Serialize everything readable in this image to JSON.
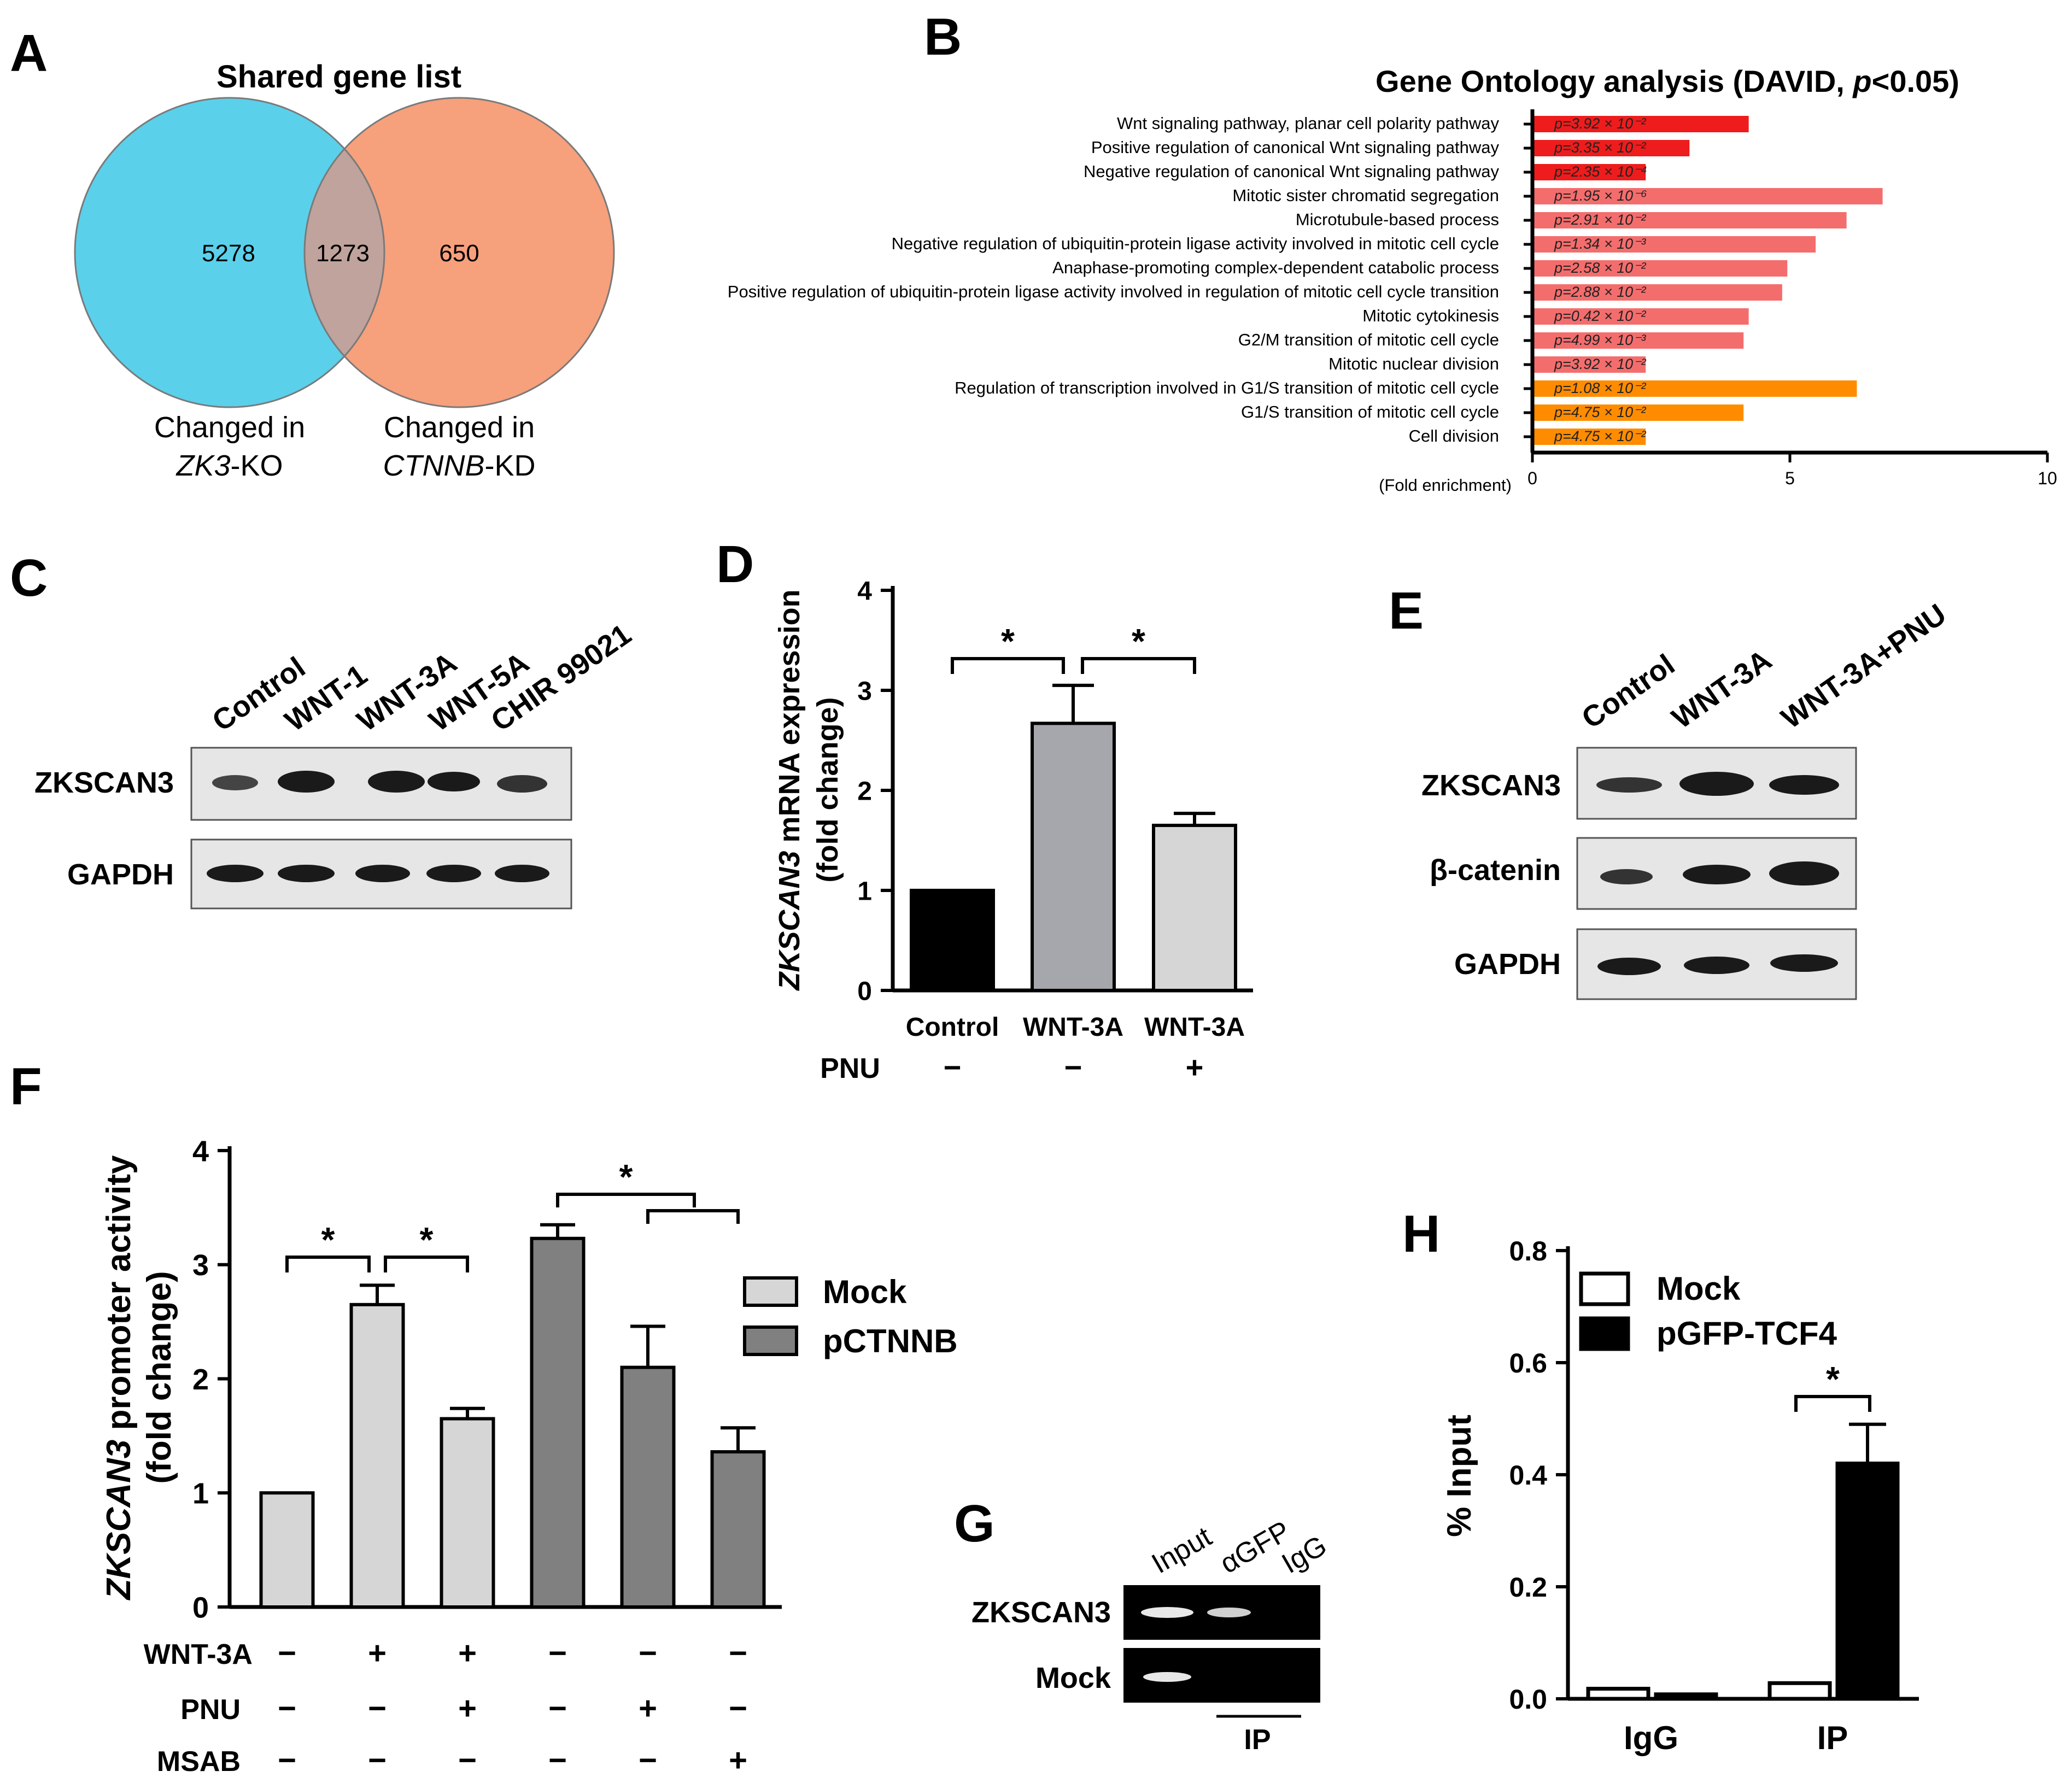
{
  "panels": {
    "A": {
      "letter": "A",
      "title": "Shared gene list",
      "left_count": "5278",
      "overlap_count": "1273",
      "right_count": "650",
      "left_label_line1": "Changed in",
      "left_label_gene": "ZK3",
      "left_label_suffix": "-KO",
      "right_label_line1": "Changed in",
      "right_label_gene": "CTNNB",
      "right_label_suffix": "-KD",
      "colors": {
        "left": "#5bd0ea",
        "right": "#f7a07c",
        "overlap": "#bfa39c"
      }
    },
    "B": {
      "letter": "B",
      "title_main": "Gene Ontology analysis (DAVID, ",
      "title_p": "p",
      "title_tail": "<0.05)",
      "axis_label": "(Fold enrichment)"
    },
    "C": {
      "letter": "C",
      "lanes": [
        "Control",
        "WNT-1",
        "WNT-3A",
        "WNT-5A",
        "CHIR 99021"
      ],
      "rows": [
        "ZKSCAN3",
        "GAPDH"
      ]
    },
    "D": {
      "letter": "D",
      "row_label": "PNU",
      "signs": [
        "−",
        "−",
        "+"
      ]
    },
    "E": {
      "letter": "E",
      "lanes": [
        "Control",
        "WNT-3A",
        "WNT-3A+PNU"
      ],
      "rows": [
        "ZKSCAN3",
        "β-catenin",
        "GAPDH"
      ]
    },
    "F": {
      "letter": "F",
      "legend": [
        "Mock",
        "pCTNNB"
      ],
      "row_labels": [
        "WNT-3A",
        "PNU",
        "MSAB"
      ],
      "signs": [
        [
          "−",
          "+",
          "+",
          "−",
          "−",
          "−"
        ],
        [
          "−",
          "−",
          "+",
          "−",
          "+",
          "−"
        ],
        [
          "−",
          "−",
          "−",
          "−",
          "−",
          "+"
        ]
      ]
    },
    "G": {
      "letter": "G",
      "lanes": [
        "Input",
        "αGFP",
        "IgG"
      ],
      "rows": [
        "ZKSCAN3",
        "Mock"
      ],
      "ip_label": "IP"
    },
    "H": {
      "letter": "H",
      "legend": [
        "Mock",
        "pGFP-TCF4"
      ]
    }
  },
  "chart_data": [
    {
      "id": "B",
      "type": "bar",
      "orientation": "horizontal",
      "title": "Gene Ontology analysis (DAVID, p<0.05)",
      "xlabel": "(Fold enrichment)",
      "xlim": [
        0,
        10
      ],
      "xticks": [
        "0",
        "5",
        "10"
      ],
      "categories": [
        "Wnt signaling pathway, planar cell polarity pathway",
        "Positive regulation of canonical Wnt signaling pathway",
        "Negative regulation of canonical Wnt signaling pathway",
        "Mitotic sister chromatid segregation",
        "Microtubule-based process",
        "Negative regulation of ubiquitin-protein ligase activity involved in mitotic cell cycle",
        "Anaphase-promoting complex-dependent catabolic process",
        "Positive regulation of ubiquitin-protein ligase activity involved in regulation of mitotic cell cycle transition",
        "Mitotic cytokinesis",
        "G2/M transition of mitotic cell cycle",
        "Mitotic nuclear division",
        "Regulation of transcription involved in G1/S transition of mitotic cell cycle",
        "G1/S transition of mitotic cell cycle",
        "Cell division"
      ],
      "values": [
        4.2,
        3.05,
        2.2,
        6.8,
        6.1,
        5.5,
        4.95,
        4.85,
        4.2,
        4.1,
        2.2,
        6.3,
        4.1,
        2.2
      ],
      "bar_labels": [
        "p=3.92 × 10⁻²",
        "p=3.35 × 10⁻²",
        "p=2.35 × 10⁻⁴",
        "p=1.95 × 10⁻⁶",
        "p=2.91 × 10⁻²",
        "p=1.34 × 10⁻³",
        "p=2.58 × 10⁻²",
        "p=2.88 × 10⁻²",
        "p=0.42 × 10⁻²",
        "p=4.99 × 10⁻³",
        "p=3.92 × 10⁻²",
        "p=1.08 × 10⁻²",
        "p=4.75 × 10⁻²",
        "p=4.75 × 10⁻²"
      ],
      "colors": [
        "#ee1c1c",
        "#ee1c1c",
        "#ee1c1c",
        "#f46d6d",
        "#f46d6d",
        "#f46d6d",
        "#f46d6d",
        "#f46d6d",
        "#f46d6d",
        "#f46d6d",
        "#f46d6d",
        "#ff8c00",
        "#ff8c00",
        "#ff8c00"
      ]
    },
    {
      "id": "D",
      "type": "bar",
      "title": "",
      "ylabel_gene": "ZKSCAN3",
      "ylabel_rest": " mRNA expression",
      "ylabel_line2": "(fold change)",
      "ylim": [
        0,
        4
      ],
      "yticks": [
        "0",
        "1",
        "2",
        "3",
        "4"
      ],
      "categories": [
        "Control",
        "WNT-3A",
        "WNT-3A"
      ],
      "values": [
        1.0,
        2.67,
        1.65
      ],
      "errors": [
        0,
        0.38,
        0.12
      ],
      "colors": [
        "#000000",
        "#a6a6ad",
        "#d6d6d6"
      ],
      "significance": [
        {
          "from": 0,
          "to": 1,
          "label": "*"
        },
        {
          "from": 1,
          "to": 2,
          "label": "*"
        }
      ]
    },
    {
      "id": "F",
      "type": "bar",
      "ylabel_gene": "ZKSCAN3",
      "ylabel_rest": " promoter activity",
      "ylabel_line2": "(fold change)",
      "ylim": [
        0,
        4
      ],
      "yticks": [
        "0",
        "1",
        "2",
        "3",
        "4"
      ],
      "series_names": [
        "Mock",
        "Mock",
        "Mock",
        "pCTNNB",
        "pCTNNB",
        "pCTNNB"
      ],
      "values": [
        1.0,
        2.65,
        1.65,
        3.23,
        2.1,
        1.36
      ],
      "errors": [
        0,
        0.17,
        0.09,
        0.12,
        0.36,
        0.21
      ],
      "colors": [
        "#d6d6d6",
        "#d6d6d6",
        "#d6d6d6",
        "#808080",
        "#808080",
        "#808080"
      ],
      "significance": [
        {
          "from": 0,
          "to": 1,
          "label": "*"
        },
        {
          "from": 1,
          "to": 2,
          "label": "*"
        },
        {
          "from": 3,
          "to": "4-5",
          "label": "*"
        }
      ]
    },
    {
      "id": "H",
      "type": "bar",
      "ylabel": "% Input",
      "ylim": [
        0,
        0.8
      ],
      "yticks": [
        "0.0",
        "0.2",
        "0.4",
        "0.6",
        "0.8"
      ],
      "categories": [
        "IgG",
        "IP"
      ],
      "series": [
        {
          "name": "Mock",
          "values": [
            0.018,
            0.028
          ],
          "color": "#ffffff"
        },
        {
          "name": "pGFP-TCF4",
          "values": [
            0.008,
            0.42
          ],
          "color": "#000000"
        }
      ],
      "errors": [
        [
          0,
          0
        ],
        [
          0,
          0.07
        ]
      ],
      "significance": [
        {
          "category": "IP",
          "label": "*"
        }
      ]
    }
  ]
}
